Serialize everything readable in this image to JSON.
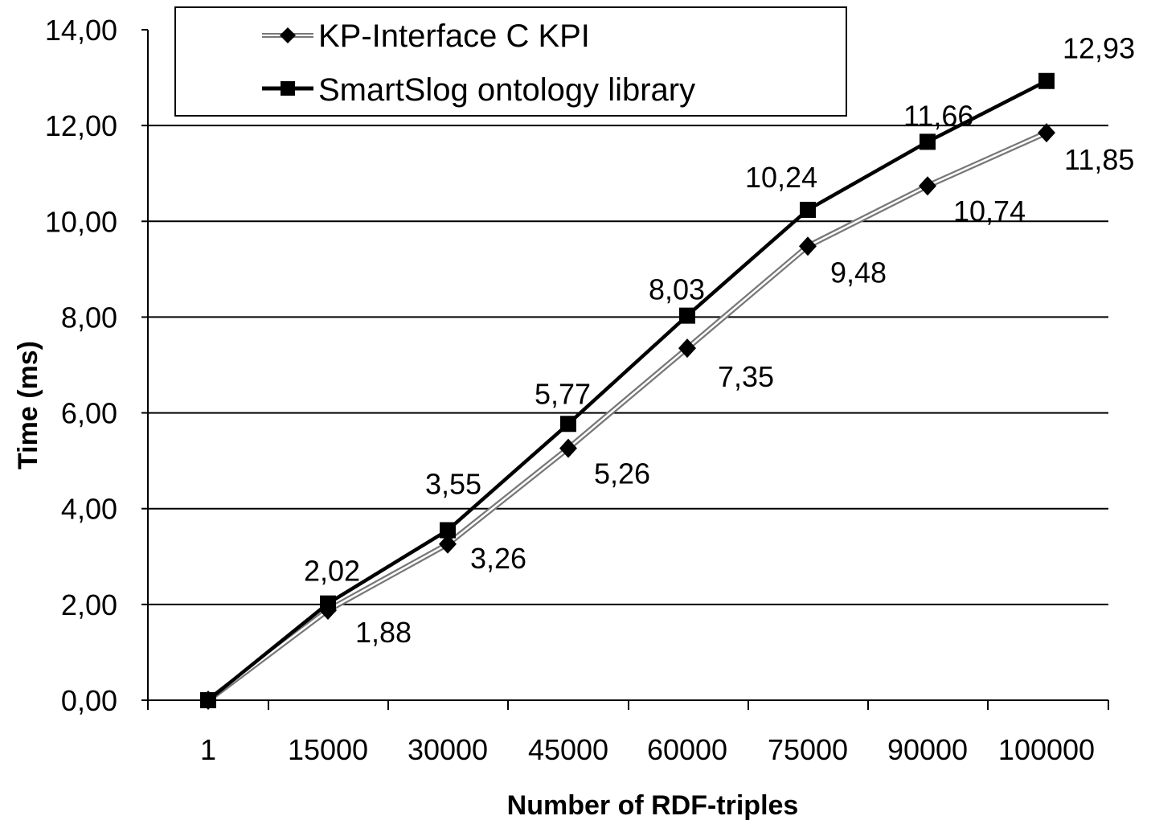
{
  "chart_data": {
    "type": "line",
    "title": "",
    "xlabel": "Number of RDF-triples",
    "ylabel": "Time (ms)",
    "categories": [
      "1",
      "15000",
      "30000",
      "45000",
      "60000",
      "75000",
      "90000",
      "100000"
    ],
    "ylim": [
      0,
      14
    ],
    "yticks": [
      "0,00",
      "2,00",
      "4,00",
      "6,00",
      "8,00",
      "10,00",
      "12,00",
      "14,00"
    ],
    "grid": true,
    "legend_position": "top-left",
    "series": [
      {
        "name": "KP-Interface C KPI",
        "marker": "diamond",
        "line_style": "double-gray",
        "values": [
          0,
          1.88,
          3.26,
          5.26,
          7.35,
          9.48,
          10.74,
          11.85
        ],
        "labels": [
          "",
          "1,88",
          "3,26",
          "5,26",
          "7,35",
          "9,48",
          "10,74",
          "11,85"
        ]
      },
      {
        "name": "SmartSlog ontology library",
        "marker": "square",
        "line_style": "solid-black",
        "values": [
          0,
          2.02,
          3.55,
          5.77,
          8.03,
          10.24,
          11.66,
          12.93
        ],
        "labels": [
          "",
          "2,02",
          "3,55",
          "5,77",
          "8,03",
          "10,24",
          "11,66",
          "12,93"
        ]
      }
    ]
  }
}
